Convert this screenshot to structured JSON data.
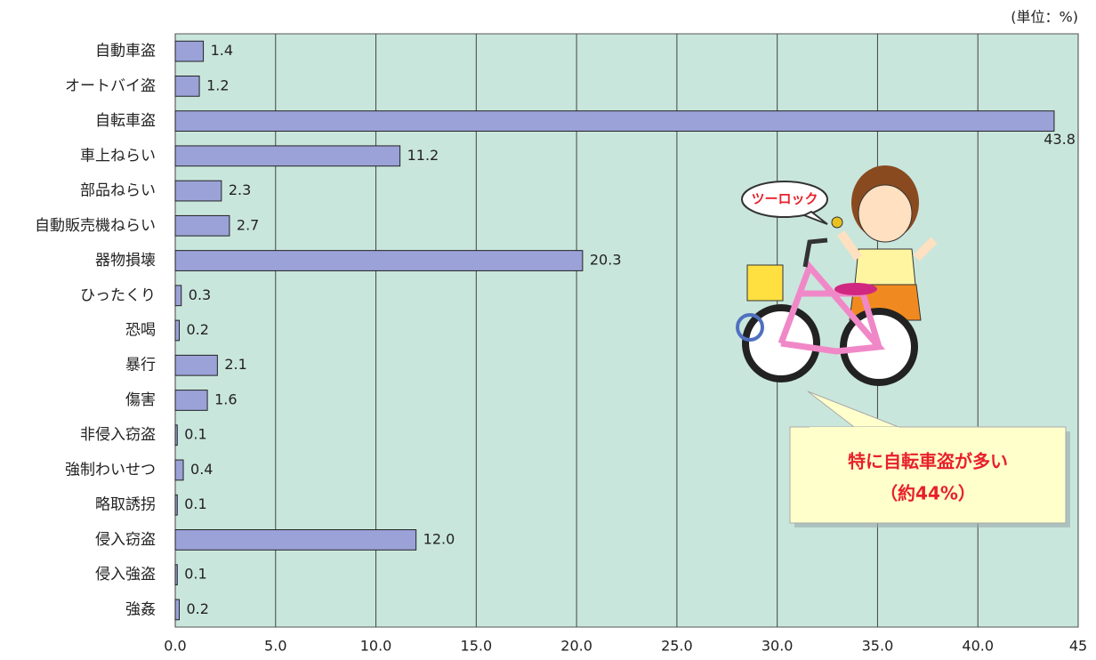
{
  "chart_data": {
    "type": "bar",
    "orientation": "horizontal",
    "unit_label": "(単位：%)",
    "categories": [
      "自動車盗",
      "オートバイ盗",
      "自転車盗",
      "車上ねらい",
      "部品ねらい",
      "自動販売機ねらい",
      "器物損壊",
      "ひったくり",
      "恐喝",
      "暴行",
      "傷害",
      "非侵入窃盗",
      "強制わいせつ",
      "略取誘拐",
      "侵入窃盗",
      "侵入強盗",
      "強姦"
    ],
    "values": [
      1.4,
      1.2,
      43.8,
      11.2,
      2.3,
      2.7,
      20.3,
      0.3,
      0.2,
      2.1,
      1.6,
      0.1,
      0.4,
      0.1,
      12.0,
      0.1,
      0.2
    ],
    "value_labels": [
      "1.4",
      "1.2",
      "43.8",
      "11.2",
      "2.3",
      "2.7",
      "20.3",
      "0.3",
      "0.2",
      "2.1",
      "1.6",
      "0.1",
      "0.4",
      "0.1",
      "12.0",
      "0.1",
      "0.2"
    ],
    "color": "#9aa2d8",
    "xlim": [
      0,
      45
    ],
    "xticks": [
      {
        "value": 0,
        "label": "0.0"
      },
      {
        "value": 5,
        "label": "5.0"
      },
      {
        "value": 10,
        "label": "10.0"
      },
      {
        "value": 15,
        "label": "15.0"
      },
      {
        "value": 20,
        "label": "20.0"
      },
      {
        "value": 25,
        "label": "25.0"
      },
      {
        "value": 30,
        "label": "30.0"
      },
      {
        "value": 35,
        "label": "35.0"
      },
      {
        "value": 40,
        "label": "40.0"
      },
      45
    ],
    "grid": true,
    "annotations": [
      "特に自転車盗が多い",
      "（約44%）"
    ],
    "speech_bubble": "ツーロック"
  }
}
